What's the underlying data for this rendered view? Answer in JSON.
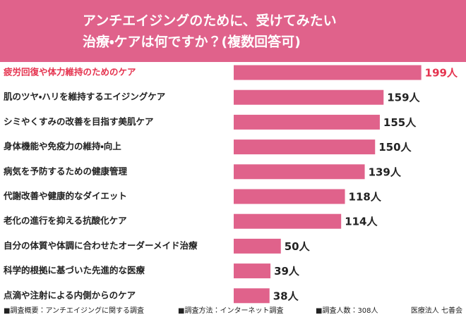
{
  "chart_data": {
    "type": "hbar",
    "title": [
      "アンチエイジングのために、受けてみたい",
      "治療・ケアは何ですか？(複数回答可)"
    ],
    "categories": [
      "疲労回復や体力維持のためのケア",
      "肌のツヤ・ハリを維持するエイジングケア",
      "シミやくすみの改善を目指す美肌ケア",
      "身体機能や免疫力の維持・向上",
      "病気を予防するための健康管理",
      "代謝改善や健康的なダイエット",
      "老化の進行を抑える抗酸化ケア",
      "自分の体質や体調に合わせたオーダーメイド治療",
      "科学的根拠に基づいた先進的な医療",
      "点滴や注射による内側からのケア"
    ],
    "values": [
      199,
      159,
      155,
      150,
      139,
      118,
      114,
      50,
      39,
      38
    ],
    "value_labels": [
      "199人",
      "159人",
      "155人",
      "150人",
      "139人",
      "118人",
      "114人",
      "50人",
      "39人",
      "38人"
    ],
    "color": "#e0628b",
    "highlight_index": 0,
    "highlight_color": "#e5334f",
    "xlim": [
      0,
      200
    ],
    "notes": [
      "■調査概要：アンチエイジングに関する調査",
      "■調査方法：インターネット調査",
      "■調査人数：308人"
    ],
    "source": "医療法人 七善会"
  }
}
